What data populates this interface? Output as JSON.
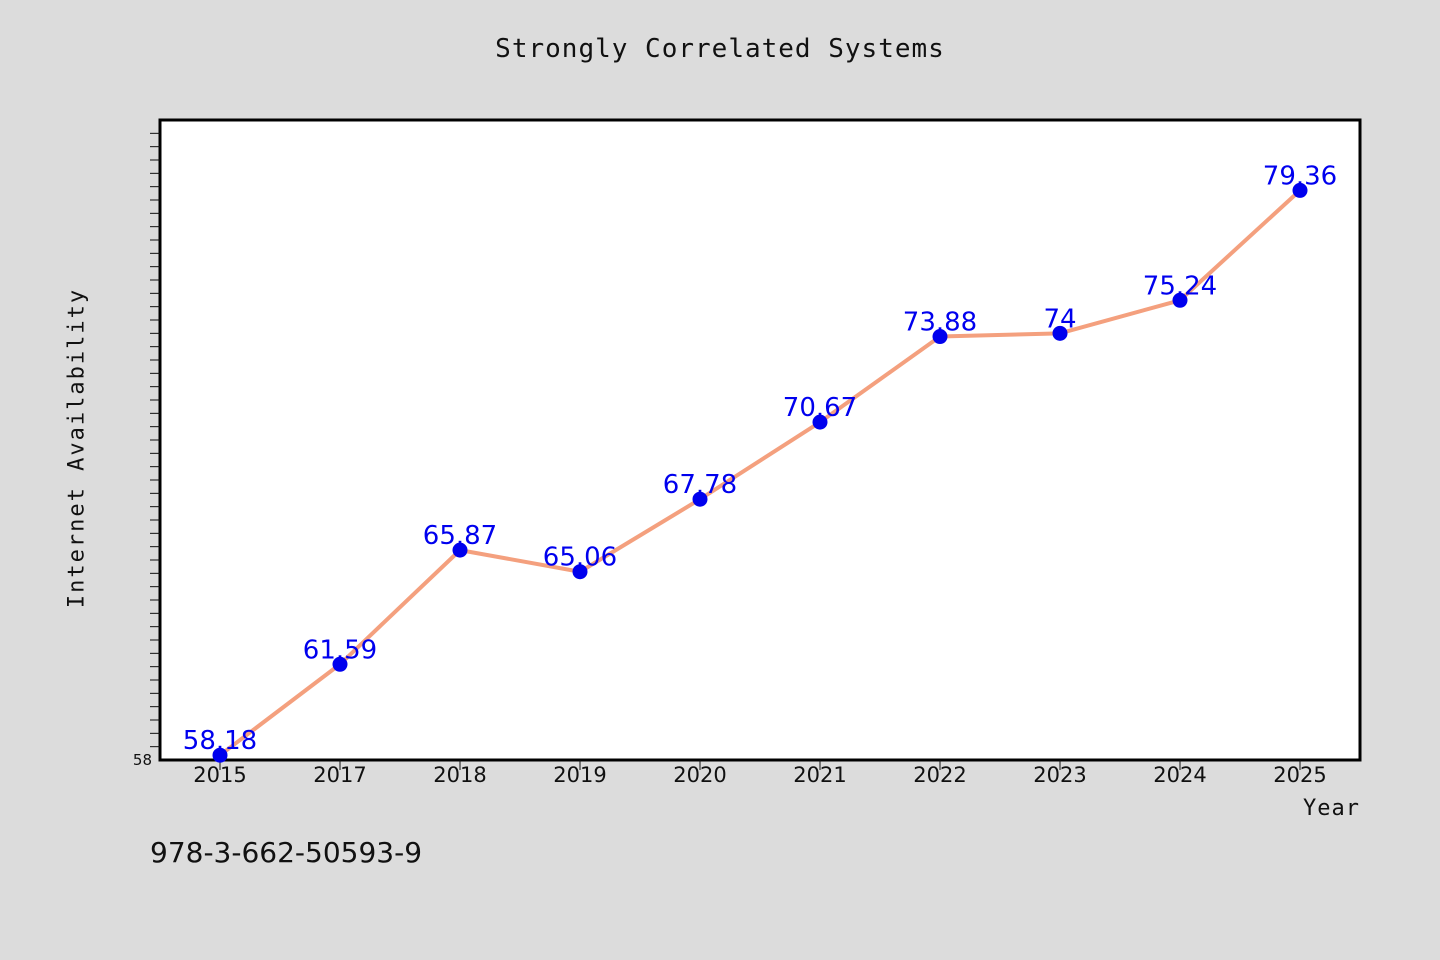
{
  "chart_data": {
    "type": "line",
    "title": "Strongly Correlated Systems",
    "xlabel": "Year",
    "ylabel": "Internet Availability",
    "categories": [
      "2015",
      "2017",
      "2018",
      "2019",
      "2020",
      "2021",
      "2022",
      "2023",
      "2024",
      "2025"
    ],
    "series": [
      {
        "values": [
          58.18,
          61.59,
          65.87,
          65.06,
          67.78,
          70.67,
          73.88,
          74,
          75.24,
          79.36
        ],
        "data_labels": [
          "58.18",
          "61.59",
          "65.87",
          "65.06",
          "67.78",
          "70.67",
          "73.88",
          "74",
          "75.24",
          "79.36"
        ]
      }
    ],
    "ylim": [
      58,
      82
    ],
    "y_tick_labels": [
      "58"
    ],
    "grid": false,
    "line_color": "#f4a07e",
    "marker_color": "#0000ee",
    "label_color": "#0000ee"
  },
  "footer": {
    "code": "978-3-662-50593-9"
  }
}
